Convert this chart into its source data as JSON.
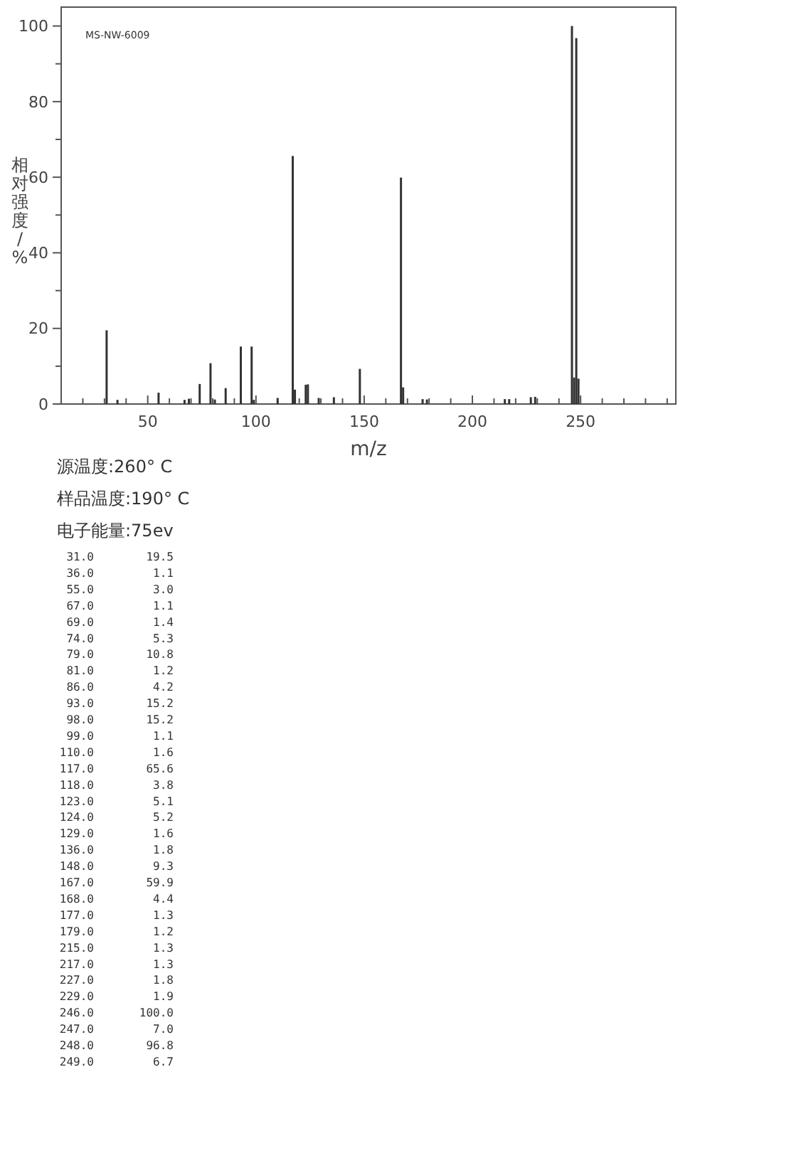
{
  "chart_data": {
    "type": "bar",
    "xlabel": "m/z",
    "ylabel": "相对强度/%",
    "x": [
      31,
      36,
      55,
      67,
      69,
      74,
      79,
      81,
      86,
      93,
      98,
      99,
      110,
      117,
      118,
      123,
      124,
      129,
      136,
      148,
      167,
      168,
      177,
      179,
      215,
      217,
      227,
      229,
      246,
      247,
      248,
      249
    ],
    "values": [
      19.5,
      1.1,
      3.0,
      1.1,
      1.4,
      5.3,
      10.8,
      1.2,
      4.2,
      15.2,
      15.2,
      1.1,
      1.6,
      65.6,
      3.8,
      5.1,
      5.2,
      1.6,
      1.8,
      9.3,
      59.9,
      4.4,
      1.3,
      1.2,
      1.3,
      1.3,
      1.8,
      1.9,
      100.0,
      7.0,
      96.8,
      6.7
    ],
    "color": "#333333",
    "xlim": [
      10,
      294
    ],
    "ylim": [
      0,
      105
    ],
    "xticks": [
      {
        "value": 10,
        "label": null
      },
      {
        "value": 20,
        "label": null
      },
      {
        "value": 30,
        "label": null
      },
      {
        "value": 40,
        "label": null
      },
      50,
      {
        "value": 60,
        "label": null
      },
      {
        "value": 70,
        "label": null
      },
      {
        "value": 80,
        "label": null
      },
      {
        "value": 90,
        "label": null
      },
      100,
      {
        "value": 110,
        "label": null
      },
      {
        "value": 120,
        "label": null
      },
      {
        "value": 130,
        "label": null
      },
      {
        "value": 140,
        "label": null
      },
      150,
      {
        "value": 160,
        "label": null
      },
      {
        "value": 170,
        "label": null
      },
      {
        "value": 180,
        "label": null
      },
      {
        "value": 190,
        "label": null
      },
      200,
      {
        "value": 210,
        "label": null
      },
      {
        "value": 220,
        "label": null
      },
      {
        "value": 230,
        "label": null
      },
      {
        "value": 240,
        "label": null
      },
      250,
      {
        "value": 260,
        "label": null
      },
      {
        "value": 270,
        "label": null
      },
      {
        "value": 280,
        "label": null
      },
      {
        "value": 290,
        "label": null
      }
    ],
    "yticks": [
      0,
      {
        "value": 10,
        "label": null
      },
      20,
      {
        "value": 30,
        "label": null
      },
      40,
      {
        "value": 50,
        "label": null
      },
      60,
      {
        "value": 70,
        "label": null
      },
      80,
      {
        "value": 90,
        "label": null
      },
      100
    ],
    "annotations": [
      "MS-NW-6009",
      "源温度:260° C",
      "样品温度:190° C",
      "电子能量:75ev",
      "31.0 19.5",
      "36.0 1.1",
      "55.0 3.0",
      "67.0 1.1",
      "69.0 1.4",
      "74.0 5.3",
      "79.0 10.8",
      "81.0 1.2",
      "86.0 4.2",
      "93.0 15.2",
      "98.0 15.2",
      "99.0 1.1",
      "110.0 1.6",
      "117.0 65.6",
      "118.0 3.8",
      "123.0 5.1",
      "124.0 5.2",
      "129.0 1.6",
      "136.0 1.8",
      "148.0 9.3",
      "167.0 59.9",
      "168.0 4.4",
      "177.0 1.3",
      "179.0 1.2",
      "215.0 1.3",
      "217.0 1.3",
      "227.0 1.8",
      "229.0 1.9",
      "246.0 100.0",
      "247.0 7.0",
      "248.0 96.8",
      "249.0 6.7"
    ]
  }
}
